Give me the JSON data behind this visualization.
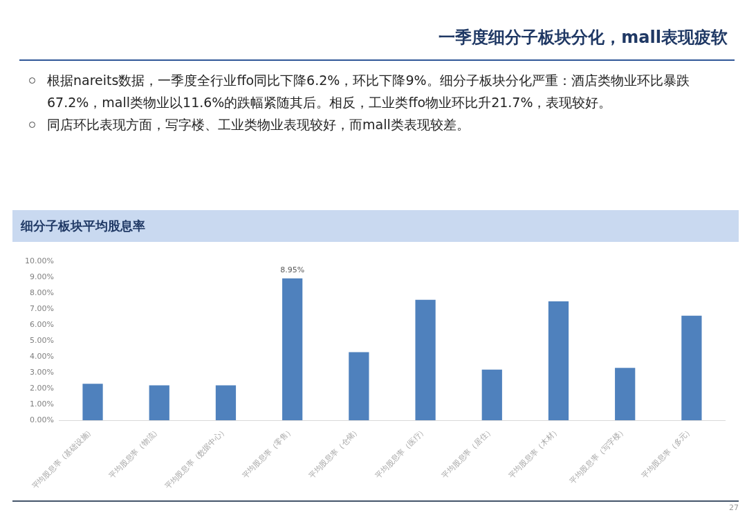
{
  "chart_data": {
    "type": "bar",
    "title": "一季度细分子板块分化，mall表现疲软",
    "subtitle": "细分子板块平均股息率",
    "annotations": [
      "根据nareits数据，一季度全行业ffo同比下降6.2%，环比下降9%。细分子板块分化严重：酒店类物业环比暴跌67.2%，mall类物业以11.6%的跌幅紧随其后。相反，工业类ffo物业环比升21.7%，表现较好。",
      "同店环比表现方面，写字楼、工业类物业表现较好，而mall类表现较差。",
      "27"
    ],
    "categories": [
      "平均股息率（基础设施）",
      "平均股息率（物流）",
      "平均股息率（数据中心）",
      "平均股息率（零售）",
      "平均股息率（仓储）",
      "平均股息率（医疗）",
      "平均股息率（居住）",
      "平均股息率（木材）",
      "平均股息率（写字楼）",
      "平均股息率（多元）"
    ],
    "values": [
      2.3,
      2.2,
      2.2,
      8.95,
      4.3,
      7.6,
      3.2,
      7.5,
      3.3,
      6.6
    ],
    "value_labels": [
      null,
      null,
      null,
      "8.95%",
      null,
      null,
      null,
      null,
      null,
      null
    ],
    "color": "#4f81bd",
    "ylim": [
      0,
      10
    ],
    "yticks": [
      {
        "value": 0,
        "label": "0.00%"
      },
      {
        "value": 1,
        "label": "1.00%"
      },
      {
        "value": 2,
        "label": "2.00%"
      },
      {
        "value": 3,
        "label": "3.00%"
      },
      {
        "value": 4,
        "label": "4.00%"
      },
      {
        "value": 5,
        "label": "5.00%"
      },
      {
        "value": 6,
        "label": "6.00%"
      },
      {
        "value": 7,
        "label": "7.00%"
      },
      {
        "value": 8,
        "label": "8.00%"
      },
      {
        "value": 9,
        "label": "9.00%"
      },
      {
        "value": 10,
        "label": "10.00%"
      }
    ],
    "grid": false,
    "legend": false
  }
}
